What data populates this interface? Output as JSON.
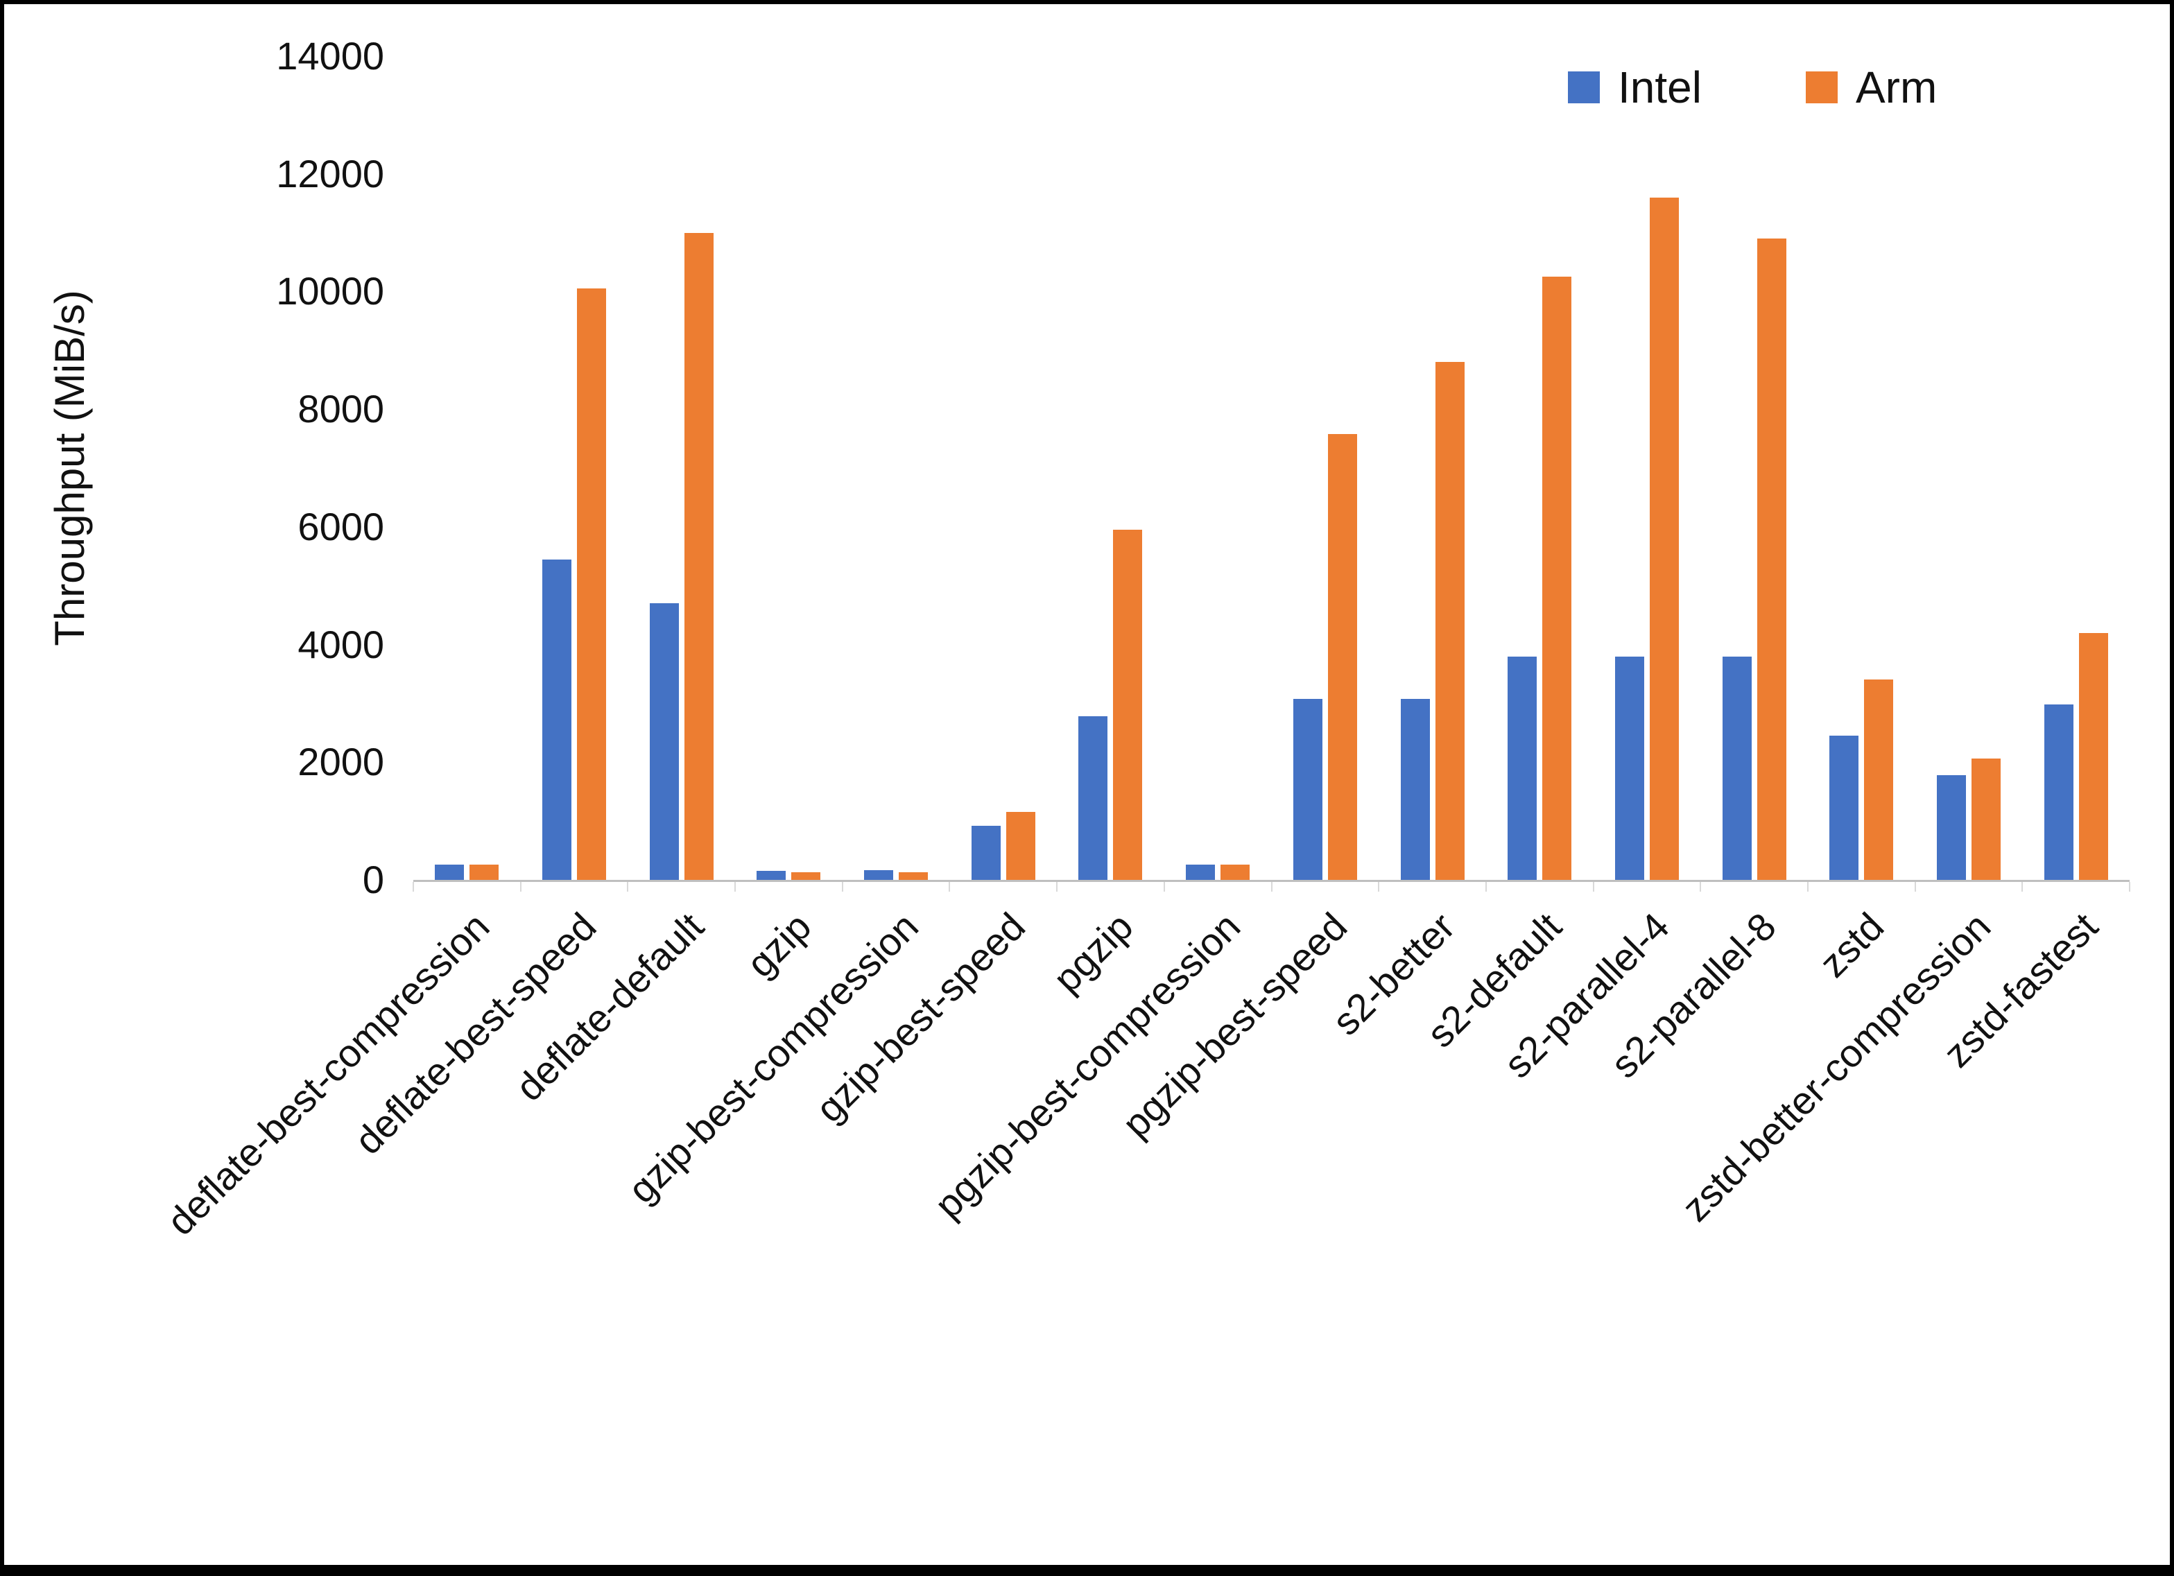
{
  "figure": {
    "background": "#ffffff",
    "border_color": "#000000",
    "axis_line_color": "#bfbfbf"
  },
  "chart_data": {
    "type": "bar",
    "title": "",
    "xlabel": "",
    "ylabel": "Throughput (MiB/s)",
    "ylim": [
      0,
      14000
    ],
    "ytick_step": 2000,
    "yticks": [
      0,
      2000,
      4000,
      6000,
      8000,
      10000,
      12000,
      14000
    ],
    "grid": false,
    "legend_position": "top-right",
    "categories": [
      "deflate-best-compression",
      "deflate-best-speed",
      "deflate-default",
      "gzip",
      "gzip-best-compression",
      "gzip-best-speed",
      "pgzip",
      "pgzip-best-compression",
      "pgzip-best-speed",
      "s2-better",
      "s2-default",
      "s2-parallel-4",
      "s2-parallel-8",
      "zstd",
      "zstd-better-compression",
      "zstd-fastest"
    ],
    "series": [
      {
        "name": "Intel",
        "color": "#4472C4",
        "values": [
          260,
          5450,
          4700,
          150,
          160,
          920,
          2780,
          260,
          3080,
          3080,
          3800,
          3800,
          3800,
          2450,
          1780,
          2980
        ]
      },
      {
        "name": "Arm",
        "color": "#ED7D31",
        "values": [
          260,
          10050,
          11000,
          130,
          130,
          1150,
          5950,
          260,
          7580,
          8800,
          10250,
          11600,
          10900,
          3400,
          2060,
          4200
        ]
      }
    ]
  }
}
